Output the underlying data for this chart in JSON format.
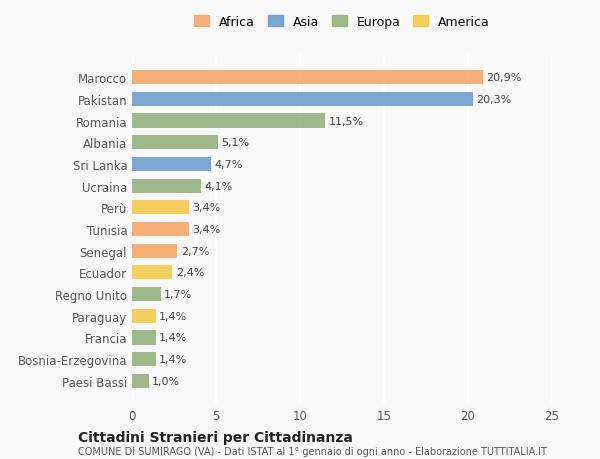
{
  "categories": [
    "Marocco",
    "Pakistan",
    "Romania",
    "Albania",
    "Sri Lanka",
    "Ucraina",
    "Perù",
    "Tunisia",
    "Senegal",
    "Ecuador",
    "Regno Unito",
    "Paraguay",
    "Francia",
    "Bosnia-Erzegovina",
    "Paesi Bassi"
  ],
  "values": [
    20.9,
    20.3,
    11.5,
    5.1,
    4.7,
    4.1,
    3.4,
    3.4,
    2.7,
    2.4,
    1.7,
    1.4,
    1.4,
    1.4,
    1.0
  ],
  "labels": [
    "20,9%",
    "20,3%",
    "11,5%",
    "5,1%",
    "4,7%",
    "4,1%",
    "3,4%",
    "3,4%",
    "2,7%",
    "2,4%",
    "1,7%",
    "1,4%",
    "1,4%",
    "1,4%",
    "1,0%"
  ],
  "colors": [
    "#F4A460",
    "#6699CC",
    "#8FAF77",
    "#8FAF77",
    "#6699CC",
    "#8FAF77",
    "#F5C842",
    "#F4A460",
    "#F4A460",
    "#F5C842",
    "#8FAF77",
    "#F5C842",
    "#8FAF77",
    "#8FAF77",
    "#8FAF77"
  ],
  "continents": [
    "Africa",
    "Asia",
    "Europa",
    "Europa",
    "Asia",
    "Europa",
    "America",
    "Africa",
    "Africa",
    "America",
    "Europa",
    "America",
    "Europa",
    "Europa",
    "Europa"
  ],
  "legend_labels": [
    "Africa",
    "Asia",
    "Europa",
    "America"
  ],
  "legend_colors": [
    "#F4A460",
    "#6699CC",
    "#8FAF77",
    "#F5C842"
  ],
  "xlim": [
    0,
    25
  ],
  "xticks": [
    0,
    5,
    10,
    15,
    20,
    25
  ],
  "title": "Cittadini Stranieri per Cittadinanza",
  "subtitle": "COMUNE DI SUMIRAGO (VA) - Dati ISTAT al 1° gennaio di ogni anno - Elaborazione TUTTITALIA.IT",
  "bg_color": "#f9f9f9",
  "grid_color": "#ffffff",
  "bar_height": 0.65
}
